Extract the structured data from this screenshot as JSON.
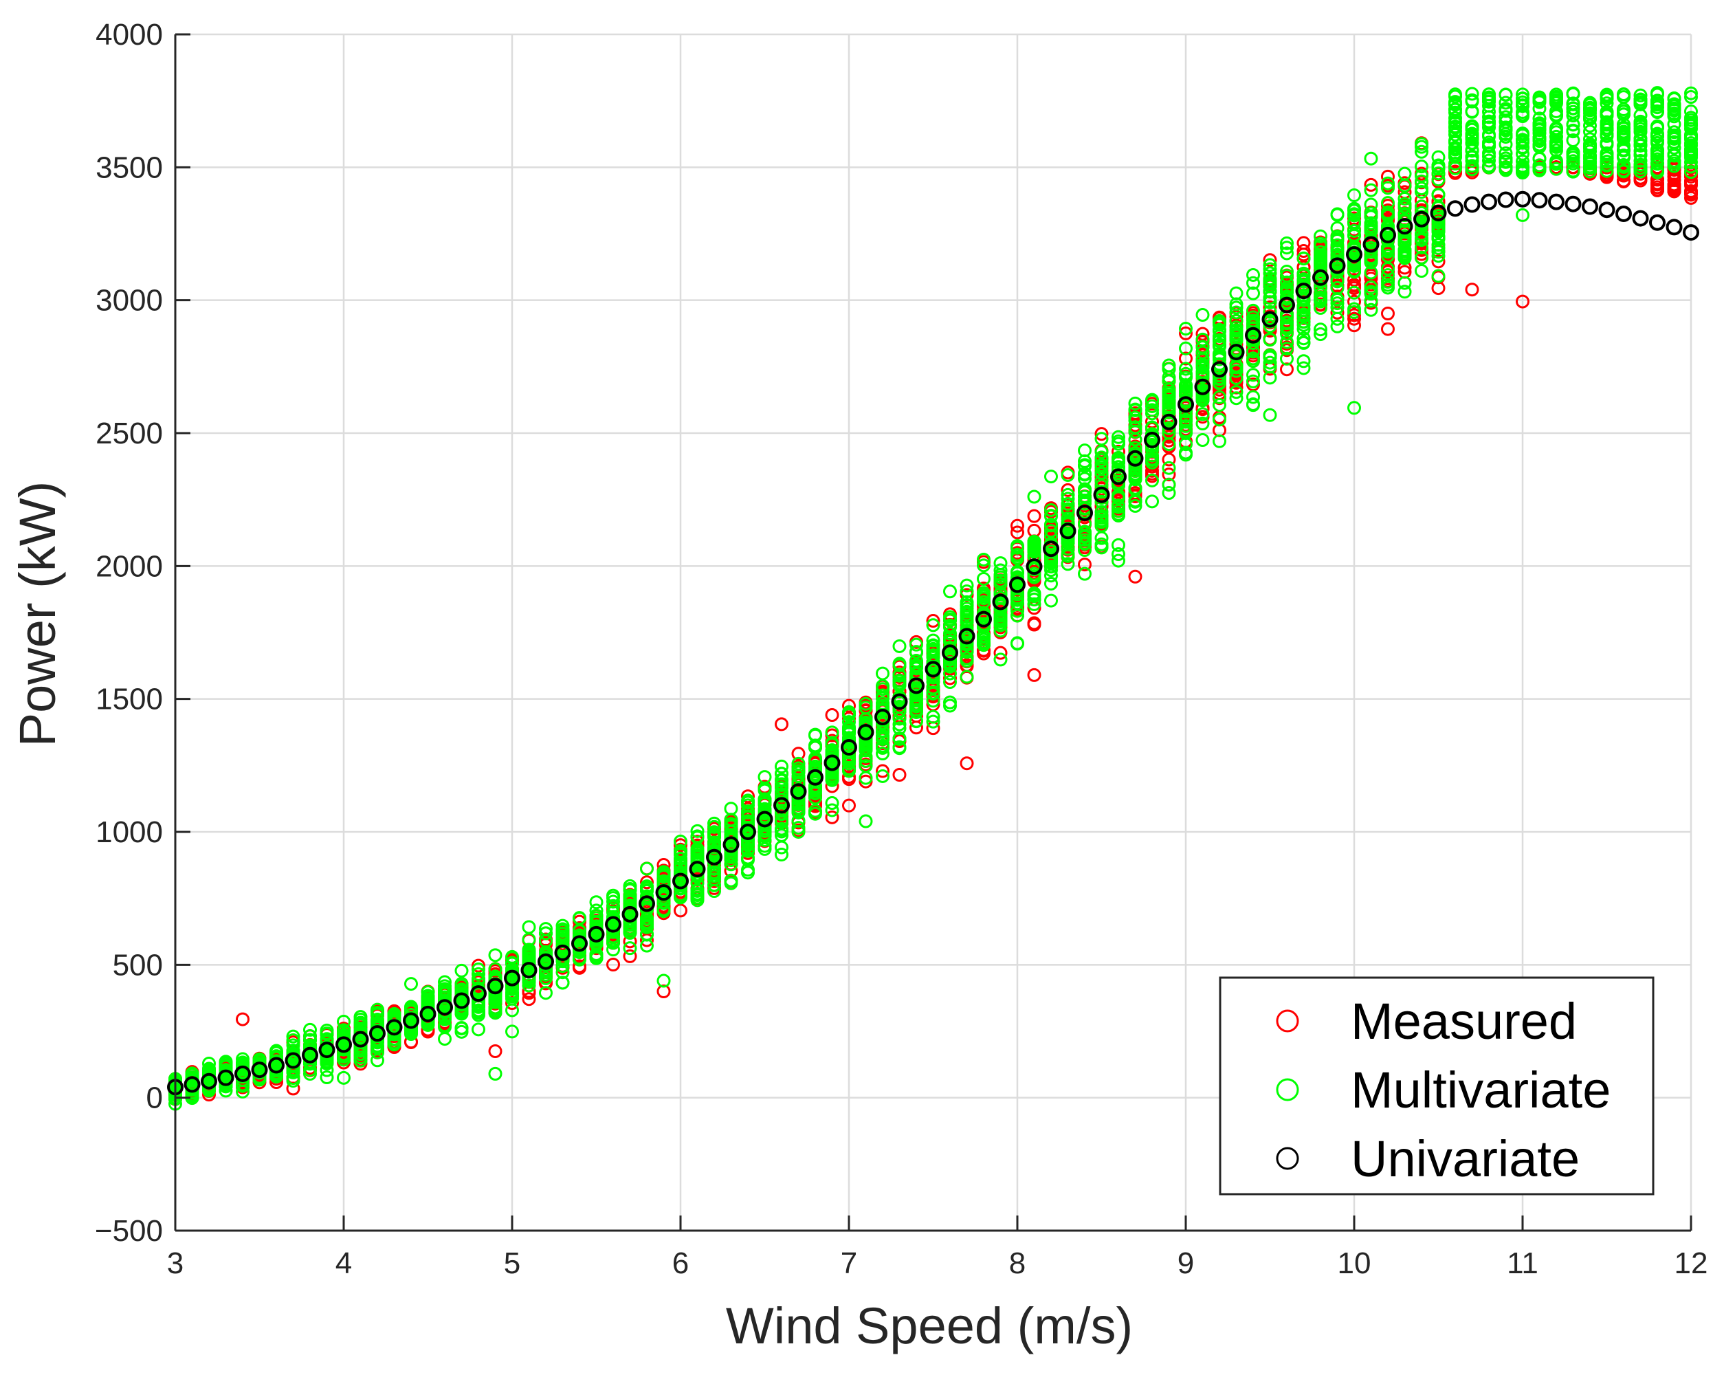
{
  "chart_data": {
    "type": "scatter",
    "title": "",
    "xlabel": "Wind Speed (m/s)",
    "ylabel": "Power (kW)",
    "xlim": [
      3,
      12
    ],
    "ylim": [
      -500,
      4000
    ],
    "xticks": [
      3,
      4,
      5,
      6,
      7,
      8,
      9,
      10,
      11,
      12
    ],
    "yticks": [
      -500,
      0,
      500,
      1000,
      1500,
      2000,
      2500,
      3000,
      3500,
      4000
    ],
    "xtick_labels": [
      "3",
      "4",
      "5",
      "6",
      "7",
      "8",
      "9",
      "10",
      "11",
      "12"
    ],
    "ytick_labels": [
      "−500",
      "0",
      "500",
      "1000",
      "1500",
      "2000",
      "2500",
      "3000",
      "3500",
      "4000"
    ],
    "grid": true,
    "legend_position": "bottom-right",
    "colors": {
      "measured": "#ff0000",
      "multivariate": "#00ff00",
      "univariate": "#000000"
    },
    "legend": [
      {
        "name": "Measured",
        "color": "#ff0000"
      },
      {
        "name": "Multivariate",
        "color": "#00ff00"
      },
      {
        "name": "Univariate",
        "color": "#000000"
      }
    ],
    "series": [
      {
        "name": "Univariate",
        "color": "#000000",
        "x": [
          3.0,
          3.1,
          3.2,
          3.3,
          3.4,
          3.5,
          3.6,
          3.7,
          3.8,
          3.9,
          4.0,
          4.1,
          4.2,
          4.3,
          4.4,
          4.5,
          4.6,
          4.7,
          4.8,
          4.9,
          5.0,
          5.1,
          5.2,
          5.3,
          5.4,
          5.5,
          5.6,
          5.7,
          5.8,
          5.9,
          6.0,
          6.1,
          6.2,
          6.3,
          6.4,
          6.5,
          6.6,
          6.7,
          6.8,
          6.9,
          7.0,
          7.1,
          7.2,
          7.3,
          7.4,
          7.5,
          7.6,
          7.7,
          7.8,
          7.9,
          8.0,
          8.1,
          8.2,
          8.3,
          8.4,
          8.5,
          8.6,
          8.7,
          8.8,
          8.9,
          9.0,
          9.1,
          9.2,
          9.3,
          9.4,
          9.5,
          9.6,
          9.7,
          9.8,
          9.9,
          10.0,
          10.1,
          10.2,
          10.3,
          10.4,
          10.5,
          10.6,
          10.7,
          10.8,
          10.9,
          11.0,
          11.1,
          11.2,
          11.3,
          11.4,
          11.5,
          11.6,
          11.7,
          11.8,
          11.9,
          12.0
        ],
        "y": [
          40,
          50,
          62,
          75,
          90,
          105,
          122,
          140,
          160,
          180,
          200,
          220,
          242,
          265,
          290,
          315,
          340,
          365,
          392,
          420,
          450,
          480,
          512,
          545,
          580,
          615,
          652,
          690,
          730,
          772,
          815,
          860,
          905,
          952,
          1000,
          1048,
          1100,
          1152,
          1205,
          1260,
          1318,
          1375,
          1432,
          1490,
          1550,
          1612,
          1674,
          1736,
          1800,
          1865,
          1930,
          1998,
          2065,
          2132,
          2200,
          2268,
          2336,
          2405,
          2474,
          2542,
          2608,
          2674,
          2740,
          2805,
          2868,
          2928,
          2982,
          3035,
          3085,
          3130,
          3172,
          3210,
          3245,
          3278,
          3305,
          3328,
          3345,
          3360,
          3370,
          3378,
          3380,
          3376,
          3370,
          3362,
          3352,
          3340,
          3325,
          3308,
          3292,
          3275,
          3255
        ]
      }
    ],
    "scatter_model": {
      "note": "Measured and Multivariate clouds are dense vertical columns at each 0.1 m/s bin around the Univariate curve",
      "x_step": 0.1,
      "measured_spread_kW": [
        40,
        190
      ],
      "multivariate_spread_kW": [
        40,
        220
      ],
      "saturation": {
        "measured_cap_kW": 3500,
        "multivariate_cap_kW": 3750,
        "from_x": 10.6
      }
    }
  }
}
